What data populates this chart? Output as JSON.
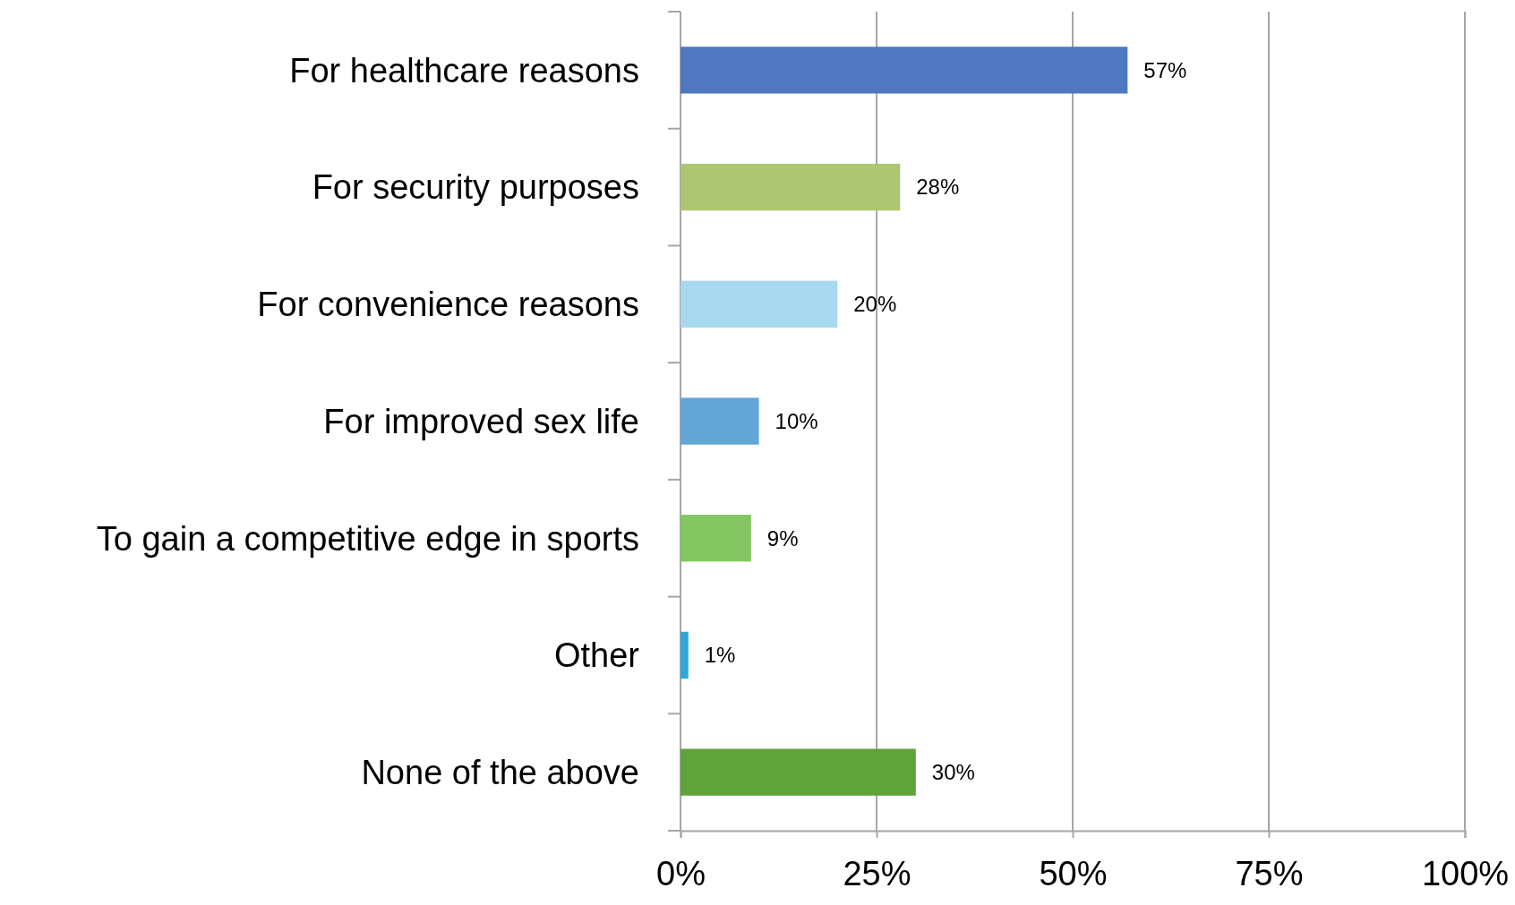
{
  "chart_data": {
    "type": "bar",
    "orientation": "horizontal",
    "categories": [
      "For healthcare reasons",
      "For security purposes",
      "For convenience reasons",
      "For improved sex life",
      "To gain a competitive edge in sports",
      "Other",
      "None of the above"
    ],
    "values": [
      57,
      28,
      20,
      10,
      9,
      1,
      30
    ],
    "colors": [
      "#4f78c0",
      "#adc673",
      "#a8d9ee",
      "#62a6d7",
      "#84c662",
      "#2ea8d8",
      "#5fa33a"
    ],
    "value_labels": [
      "57%",
      "28%",
      "20%",
      "10%",
      "9%",
      "1%",
      "30%"
    ],
    "xlim": [
      0,
      100
    ],
    "xticks": [
      {
        "value": 0,
        "label": "0%"
      },
      {
        "value": 25,
        "label": "25%"
      },
      {
        "value": 50,
        "label": "50%"
      },
      {
        "value": 75,
        "label": "75%"
      },
      {
        "value": 100,
        "label": "100%"
      }
    ],
    "grid": "x"
  }
}
